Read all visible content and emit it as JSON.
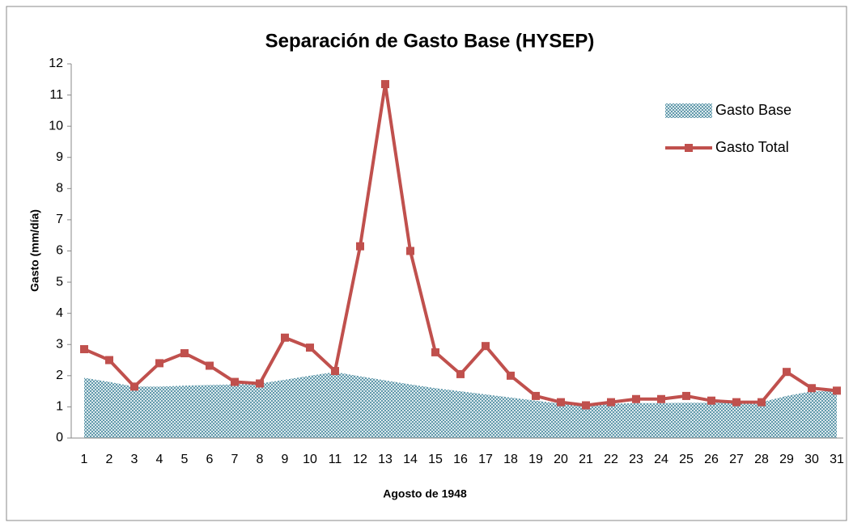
{
  "chart_data": {
    "type": "area_line",
    "title": "Separación de Gasto Base (HYSEP)",
    "x_label": "Agosto de 1948",
    "y_label": "Gasto (mm/día)",
    "categories": [
      "1",
      "2",
      "3",
      "4",
      "5",
      "6",
      "7",
      "8",
      "9",
      "10",
      "11",
      "12",
      "13",
      "14",
      "15",
      "16",
      "17",
      "18",
      "19",
      "20",
      "21",
      "22",
      "23",
      "24",
      "25",
      "26",
      "27",
      "28",
      "29",
      "30",
      "31"
    ],
    "series": [
      {
        "name": "Gasto Base",
        "color": "#4a8ba0",
        "kind": "area",
        "values": [
          1.93,
          1.8,
          1.65,
          1.65,
          1.68,
          1.7,
          1.72,
          1.75,
          1.87,
          2.0,
          2.12,
          1.98,
          1.85,
          1.72,
          1.6,
          1.5,
          1.4,
          1.3,
          1.2,
          1.1,
          1.05,
          1.1,
          1.12,
          1.12,
          1.13,
          1.13,
          1.13,
          1.15,
          1.35,
          1.5,
          1.5
        ]
      },
      {
        "name": "Gasto Total",
        "color": "#c0504d",
        "kind": "line",
        "values": [
          2.85,
          2.5,
          1.65,
          2.4,
          2.72,
          2.32,
          1.8,
          1.75,
          3.22,
          2.9,
          2.15,
          6.15,
          11.35,
          6.0,
          2.75,
          2.05,
          2.95,
          2.0,
          1.35,
          1.15,
          1.05,
          1.15,
          1.25,
          1.25,
          1.35,
          1.2,
          1.15,
          1.15,
          2.12,
          1.6,
          1.52
        ]
      }
    ],
    "ylim": [
      0,
      12
    ],
    "yticks": [
      0,
      1,
      2,
      3,
      4,
      5,
      6,
      7,
      8,
      9,
      10,
      11,
      12
    ],
    "legend": "right"
  }
}
